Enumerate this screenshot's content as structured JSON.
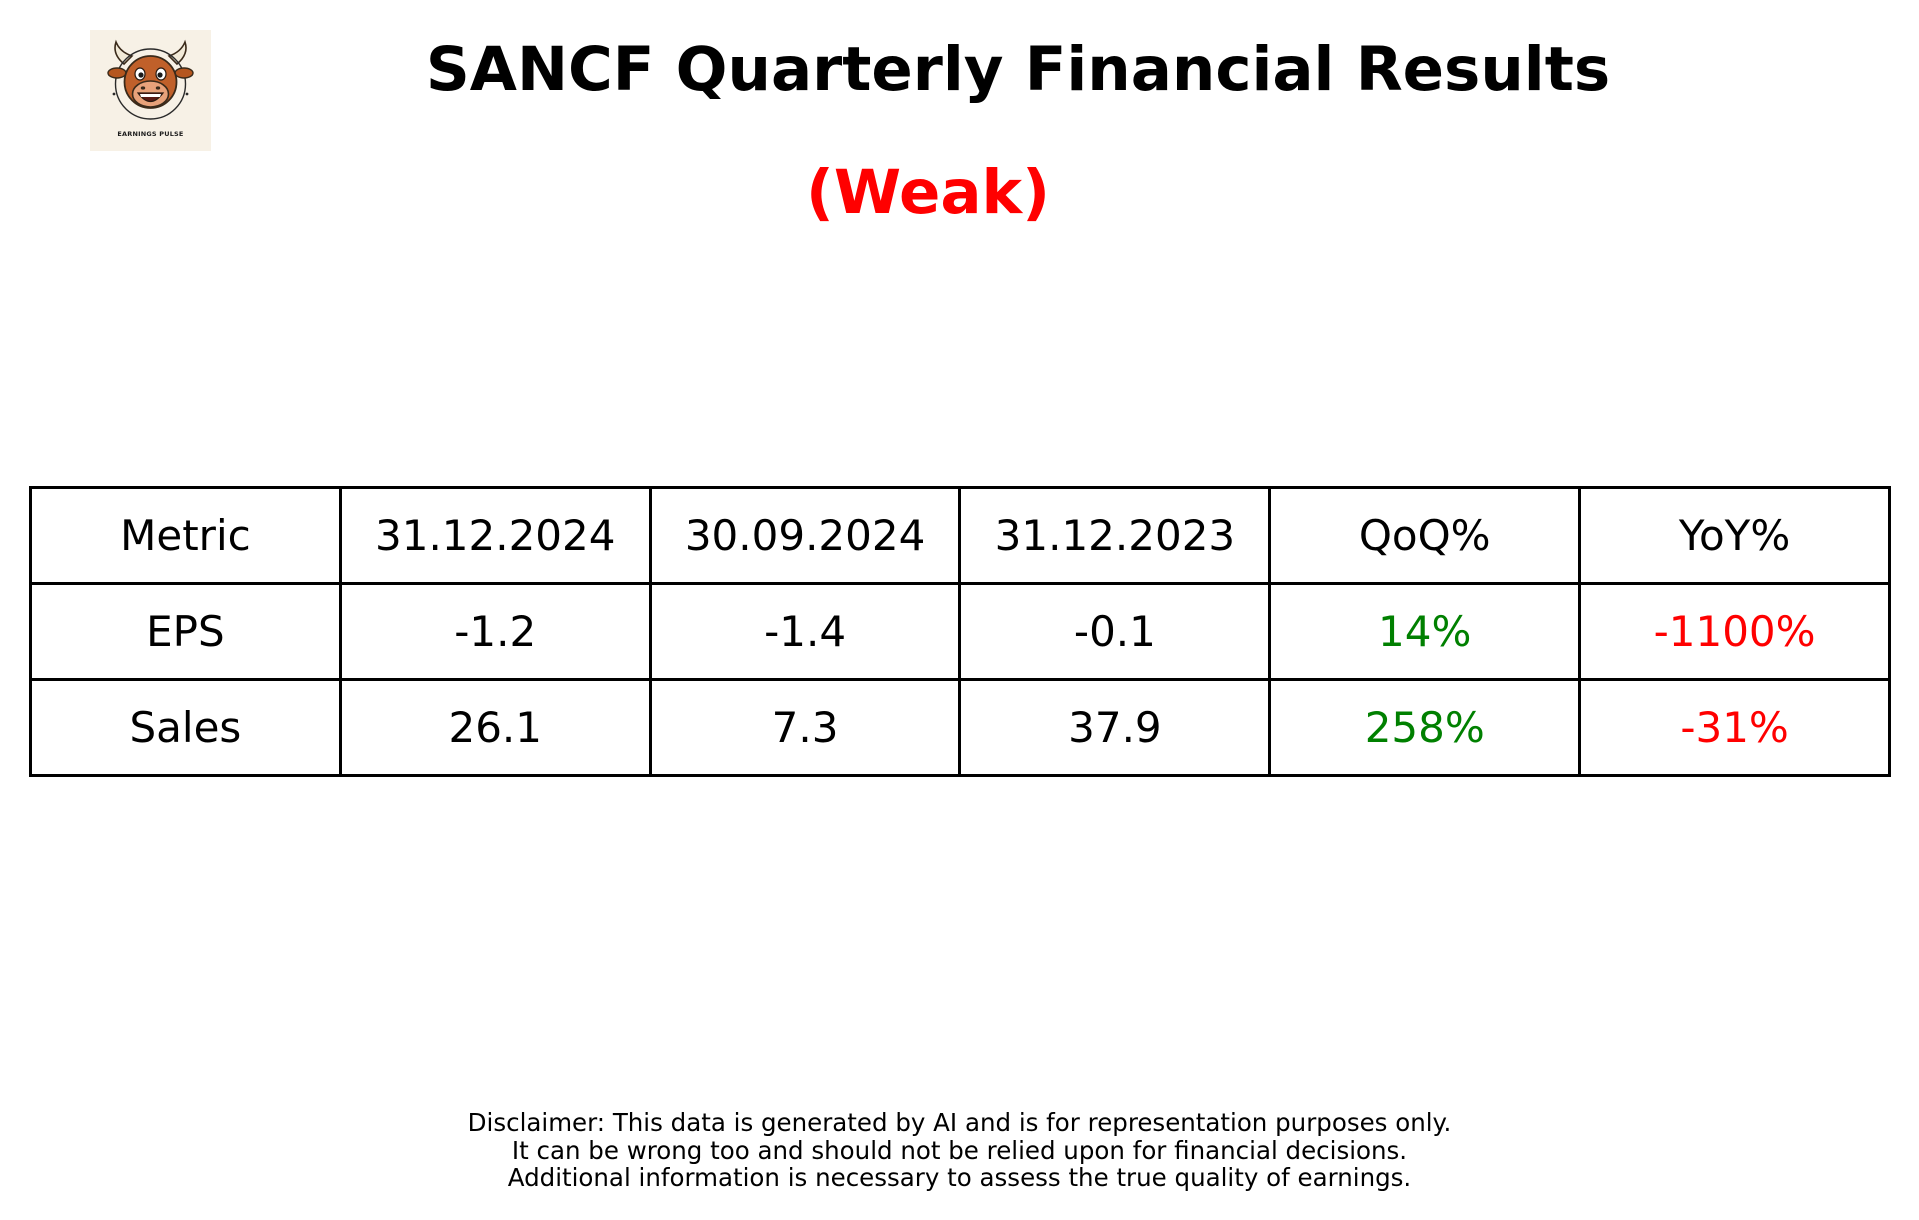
{
  "logo": {
    "text": "EARNINGS PULSE",
    "icon": "smiling-bull-icon",
    "background": "#f7f1e6"
  },
  "title": "SANCF Quarterly Financial Results",
  "rating": {
    "label": "(Weak)",
    "color": "#ff0000"
  },
  "colors": {
    "positive": "#008000",
    "negative": "#ff0000",
    "neutral": "#000000"
  },
  "table": {
    "headers": [
      "Metric",
      "31.12.2024",
      "30.09.2024",
      "31.12.2023",
      "QoQ%",
      "YoY%"
    ],
    "rows": [
      {
        "cells": [
          "EPS",
          "-1.2",
          "-1.4",
          "-0.1",
          "14%",
          "-1100%"
        ],
        "colors": [
          "#000000",
          "#000000",
          "#000000",
          "#000000",
          "#008000",
          "#ff0000"
        ]
      },
      {
        "cells": [
          "Sales",
          "26.1",
          "7.3",
          "37.9",
          "258%",
          "-31%"
        ],
        "colors": [
          "#000000",
          "#000000",
          "#000000",
          "#000000",
          "#008000",
          "#ff0000"
        ]
      }
    ]
  },
  "disclaimer": [
    "Disclaimer: This data is generated by AI and is for representation purposes only.",
    "It can be wrong too and should not be relied upon for financial decisions.",
    "Additional information is necessary to assess the true quality of earnings."
  ]
}
